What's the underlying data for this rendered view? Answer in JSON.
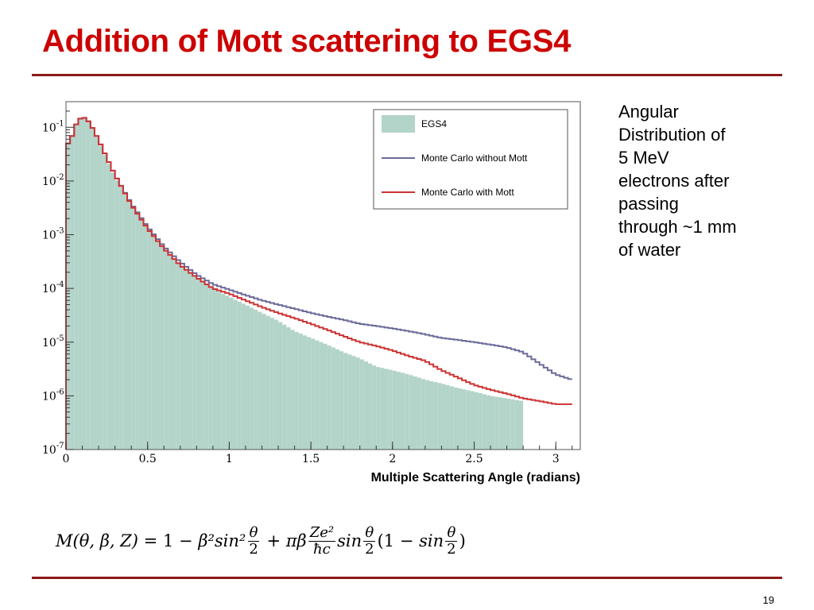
{
  "slide": {
    "title": "Addition of Mott scattering to EGS4",
    "page_number": "19"
  },
  "caption": {
    "lines": [
      "Angular",
      "Distribution of",
      "5 MeV",
      "electrons after",
      "passing",
      "through ~1 mm",
      "of water"
    ]
  },
  "formula": {
    "lhs": "M(θ, β, Z)",
    "eq": "=",
    "one": "1",
    "minus1": "−",
    "t1": "β²sin²",
    "f1_num": "θ",
    "f1_den": "2",
    "plus": "+",
    "t2": "πβ",
    "f2_num": "Ze²",
    "f2_den": "ħc",
    "t3": "sin",
    "f3_num": "θ",
    "f3_den": "2",
    "t4": "(1",
    "minus2": "−",
    "t5": "sin",
    "f4_num": "θ",
    "f4_den": "2",
    "t6": ")"
  },
  "colors": {
    "title": "#cc0000",
    "rule": "#8b1a1a",
    "egs4_fill": "#b3d4c9",
    "mc_without_mott": "#6b6b9a",
    "mc_with_mott": "#cc3333"
  },
  "chart_data": {
    "type": "histogram",
    "xlabel": "Multiple Scattering Angle (radians)",
    "ylabel": "",
    "xlim": [
      0,
      3.15
    ],
    "ylim": [
      1e-07,
      0.3
    ],
    "yscale": "log",
    "bin_width": 0.025,
    "x_ticks": [
      {
        "value": 0,
        "label": "0"
      },
      {
        "value": 0.5,
        "label": "0.5"
      },
      {
        "value": 1,
        "label": "1"
      },
      {
        "value": 1.5,
        "label": "1.5"
      },
      {
        "value": 2,
        "label": "2"
      },
      {
        "value": 2.5,
        "label": "2.5"
      },
      {
        "value": 3,
        "label": "3"
      }
    ],
    "y_ticks": [
      {
        "value": 0.1,
        "base": "10",
        "exp": "-1"
      },
      {
        "value": 0.01,
        "base": "10",
        "exp": "-2"
      },
      {
        "value": 0.001,
        "base": "10",
        "exp": "-3"
      },
      {
        "value": 0.0001,
        "base": "10",
        "exp": "-4"
      },
      {
        "value": 1e-05,
        "base": "10",
        "exp": "-5"
      },
      {
        "value": 1e-06,
        "base": "10",
        "exp": "-6"
      },
      {
        "value": 1e-07,
        "base": "10",
        "exp": "-7"
      }
    ],
    "legend_position": "top-right",
    "series": [
      {
        "name": "EGS4",
        "kind": "filled-histogram",
        "x": [
          0.025,
          0.05,
          0.075,
          0.1,
          0.125,
          0.15,
          0.2,
          0.25,
          0.3,
          0.4,
          0.5,
          0.6,
          0.7,
          0.8,
          0.9,
          1.0,
          1.1,
          1.2,
          1.3,
          1.4,
          1.5,
          1.6,
          1.7,
          1.8,
          1.9,
          2.0,
          2.1,
          2.2,
          2.3,
          2.4,
          2.5,
          2.6,
          2.7,
          2.8
        ],
        "y": [
          0.048,
          0.09,
          0.13,
          0.15,
          0.14,
          0.11,
          0.055,
          0.025,
          0.012,
          0.0035,
          0.0013,
          0.00055,
          0.00028,
          0.00016,
          0.0001,
          7e-05,
          5e-05,
          3.5e-05,
          2.5e-05,
          1.6e-05,
          1.2e-05,
          9e-06,
          6.5e-06,
          5e-06,
          3.5e-06,
          3e-06,
          2.5e-06,
          2e-06,
          1.7e-06,
          1.4e-06,
          1.2e-06,
          1e-06,
          9e-07,
          8e-07
        ]
      },
      {
        "name": "Monte Carlo without Mott",
        "kind": "step-line",
        "x": [
          0.025,
          0.05,
          0.075,
          0.1,
          0.125,
          0.15,
          0.2,
          0.25,
          0.3,
          0.4,
          0.5,
          0.6,
          0.7,
          0.8,
          0.9,
          1.0,
          1.1,
          1.2,
          1.3,
          1.4,
          1.5,
          1.6,
          1.7,
          1.8,
          1.9,
          2.0,
          2.1,
          2.2,
          2.3,
          2.4,
          2.5,
          2.6,
          2.7,
          2.8,
          2.9,
          3.0,
          3.1
        ],
        "y": [
          0.05,
          0.095,
          0.135,
          0.155,
          0.145,
          0.115,
          0.058,
          0.027,
          0.013,
          0.0038,
          0.0014,
          0.0006,
          0.00031,
          0.00018,
          0.00012,
          9.5e-05,
          7.5e-05,
          6e-05,
          5e-05,
          4.2e-05,
          3.5e-05,
          3e-05,
          2.6e-05,
          2.2e-05,
          2e-05,
          1.8e-05,
          1.6e-05,
          1.4e-05,
          1.2e-05,
          1.1e-05,
          1e-05,
          9e-06,
          8e-06,
          6.5e-06,
          4e-06,
          2.5e-06,
          2e-06
        ]
      },
      {
        "name": "Monte Carlo with Mott",
        "kind": "step-line",
        "x": [
          0.025,
          0.05,
          0.075,
          0.1,
          0.125,
          0.15,
          0.2,
          0.25,
          0.3,
          0.4,
          0.5,
          0.6,
          0.7,
          0.8,
          0.9,
          1.0,
          1.1,
          1.2,
          1.3,
          1.4,
          1.5,
          1.6,
          1.7,
          1.8,
          1.9,
          2.0,
          2.1,
          2.2,
          2.3,
          2.4,
          2.5,
          2.6,
          2.7,
          2.8,
          2.9,
          3.0,
          3.1
        ],
        "y": [
          0.05,
          0.095,
          0.135,
          0.155,
          0.145,
          0.115,
          0.058,
          0.027,
          0.013,
          0.0036,
          0.0013,
          0.00055,
          0.00027,
          0.00016,
          0.0001,
          8e-05,
          6e-05,
          4.5e-05,
          3.5e-05,
          2.8e-05,
          2.2e-05,
          1.7e-05,
          1.3e-05,
          1e-05,
          8.5e-06,
          7e-06,
          5.5e-06,
          4.5e-06,
          3e-06,
          2.2e-06,
          1.6e-06,
          1.3e-06,
          1.1e-06,
          9e-07,
          8e-07,
          7e-07,
          7e-07
        ]
      }
    ]
  }
}
